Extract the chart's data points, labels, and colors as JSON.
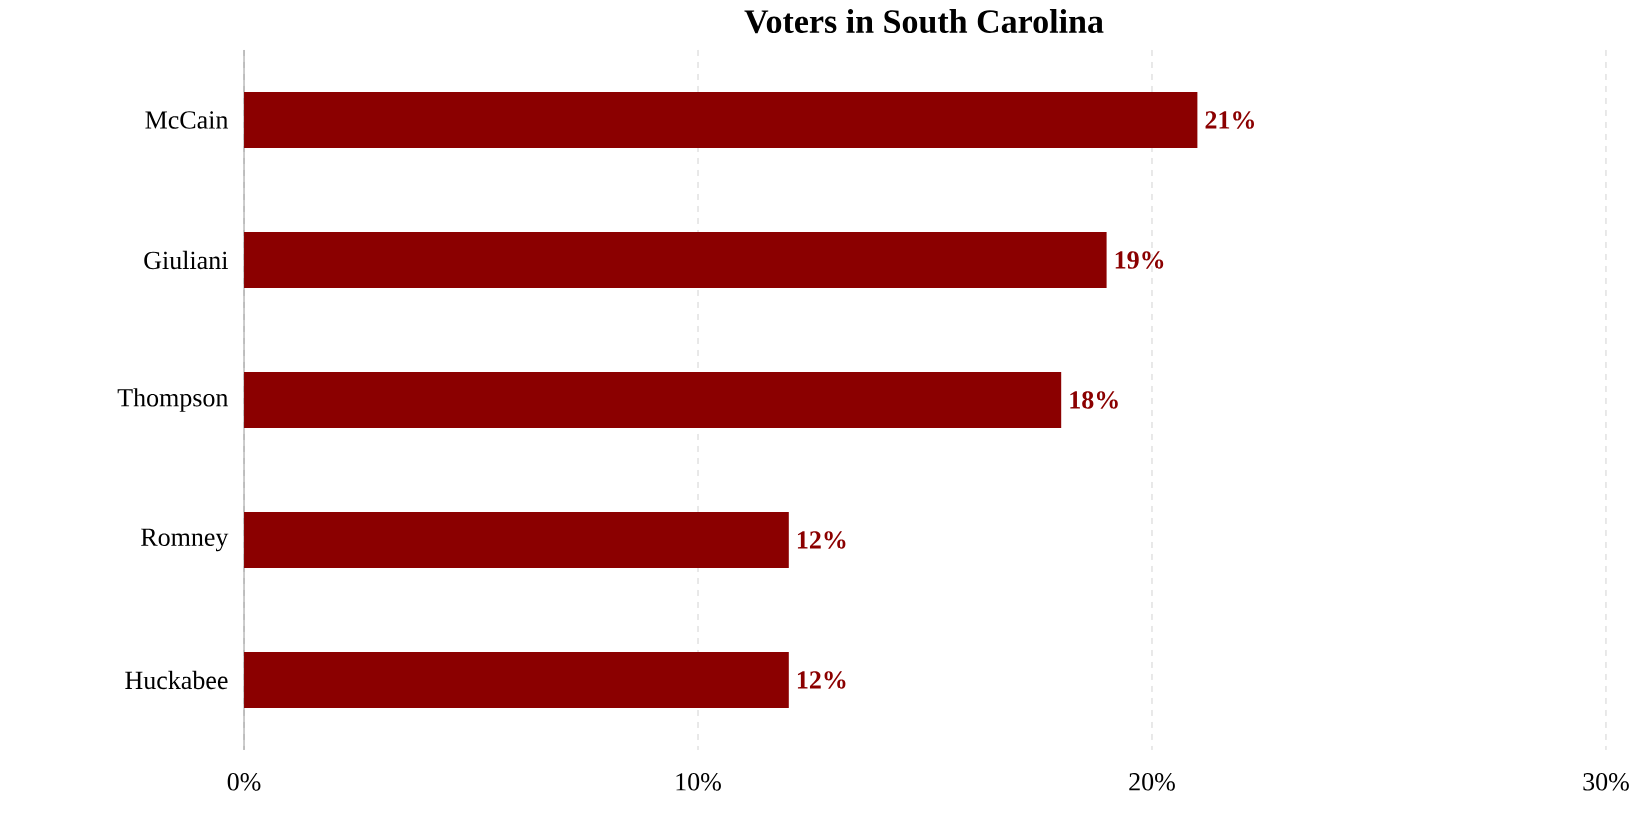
{
  "chart_data": {
    "type": "bar",
    "orientation": "horizontal",
    "title": "Voters in South Carolina",
    "categories": [
      "McCain",
      "Giuliani",
      "Thompson",
      "Romney",
      "Huckabee"
    ],
    "values": [
      21,
      19,
      18,
      12,
      12
    ],
    "value_labels": [
      "21%",
      "19%",
      "18%",
      "12%",
      "12%"
    ],
    "color": "#8b0000",
    "xlim": [
      0,
      30
    ],
    "xticks": [
      {
        "value": 0,
        "label": "0%"
      },
      {
        "value": 10,
        "label": "10%"
      },
      {
        "value": 20,
        "label": "20%"
      },
      {
        "value": 30,
        "label": "30%"
      }
    ],
    "grid": "x"
  }
}
